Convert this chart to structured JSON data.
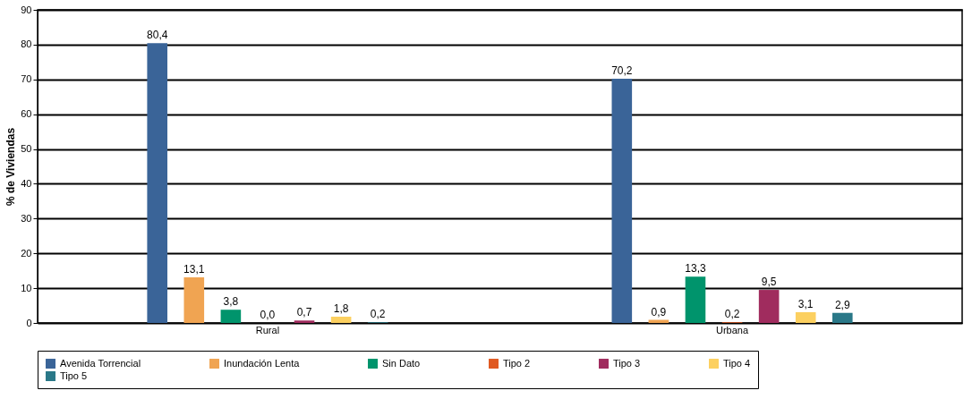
{
  "chart_data": {
    "type": "bar",
    "ylabel": "% de Viviendas",
    "categories": [
      "Rural",
      "Urbana"
    ],
    "series": [
      {
        "name": "Avenida Torrencial",
        "color": "#3a6498",
        "values": [
          80.4,
          70.2
        ],
        "value_labels": [
          "80,4",
          "70,2"
        ]
      },
      {
        "name": "Inundación Lenta",
        "color": "#f0a452",
        "values": [
          13.1,
          0.9
        ],
        "value_labels": [
          "13,1",
          "0,9"
        ]
      },
      {
        "name": "Sin Dato",
        "color": "#00946c",
        "values": [
          3.8,
          13.3
        ],
        "value_labels": [
          "3,8",
          "13,3"
        ]
      },
      {
        "name": "Tipo 2",
        "color": "#e05a22",
        "values": [
          0.0,
          0.2
        ],
        "value_labels": [
          "0,0",
          "0,2"
        ]
      },
      {
        "name": "Tipo 3",
        "color": "#a02c5e",
        "values": [
          0.7,
          9.5
        ],
        "value_labels": [
          "0,7",
          "9,5"
        ]
      },
      {
        "name": "Tipo 4",
        "color": "#fcd060",
        "values": [
          1.8,
          3.1
        ],
        "value_labels": [
          "1,8",
          "3,1"
        ]
      },
      {
        "name": "Tipo 5",
        "color": "#2a7888",
        "values": [
          0.2,
          2.9
        ],
        "value_labels": [
          "0,2",
          "2,9"
        ]
      }
    ],
    "ylim": [
      0,
      90
    ],
    "yticks": [
      0,
      10,
      20,
      30,
      40,
      50,
      60,
      70,
      80,
      90
    ],
    "grid": "y",
    "legend": "bottom"
  }
}
